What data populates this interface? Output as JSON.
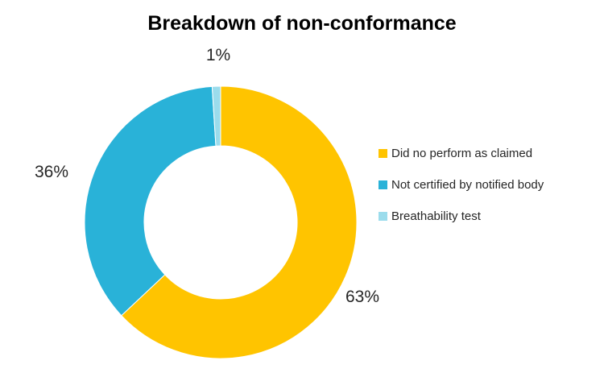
{
  "chart_data": {
    "type": "pie",
    "subtype": "donut",
    "title": "Breakdown of non-conformance",
    "unit": "%",
    "direction": "clockwise",
    "start_angle_deg": 0,
    "hole_ratio": 0.56,
    "legend_position": "right",
    "background": "#FFFFFF",
    "title_color": "#000000",
    "label_color": "#262626",
    "slices": [
      {
        "label": "Did no perform as claimed",
        "value": 63,
        "pct_label": "63%",
        "color": "#FFC400"
      },
      {
        "label": "Not certified by notified body",
        "value": 36,
        "pct_label": "36%",
        "color": "#29B2D8"
      },
      {
        "label": "Breathability test",
        "value": 1,
        "pct_label": "1%",
        "color": "#9BDCEC"
      }
    ]
  }
}
